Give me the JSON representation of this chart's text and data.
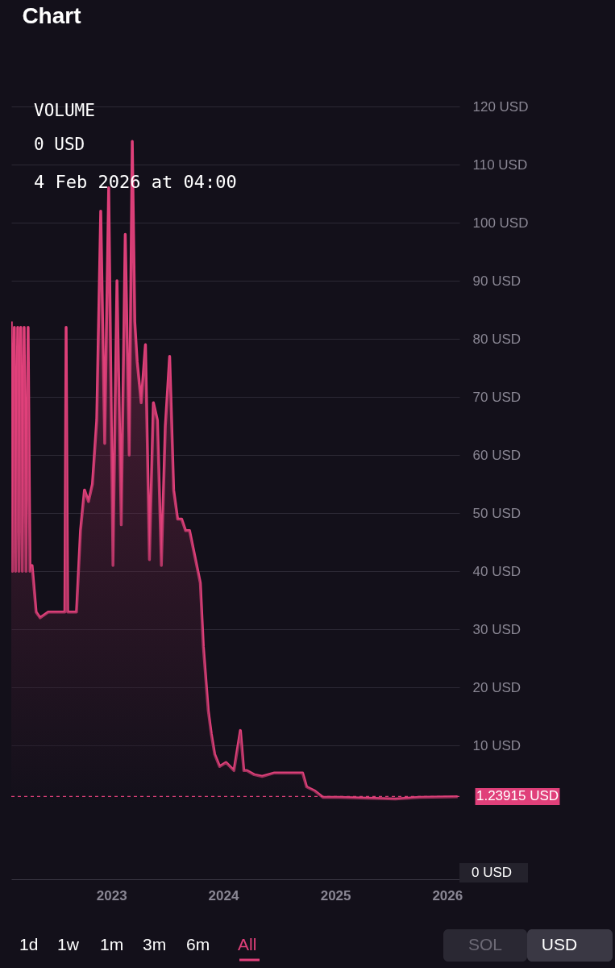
{
  "chart_data": {
    "type": "area",
    "title": "Chart",
    "x": [
      "2022-02-08",
      "2022-02-12",
      "2022-02-18",
      "2022-02-22",
      "2022-03-01",
      "2022-03-05",
      "2022-03-11",
      "2022-03-16",
      "2022-03-22",
      "2022-03-28",
      "2022-04-04",
      "2022-04-10",
      "2022-04-17",
      "2022-04-30",
      "2022-05-13",
      "2022-06-09",
      "2022-07-18",
      "2022-08-02",
      "2022-08-06",
      "2022-08-11",
      "2022-09-09",
      "2022-09-22",
      "2022-10-05",
      "2022-10-18",
      "2022-10-31",
      "2022-11-14",
      "2022-11-27",
      "2022-12-10",
      "2022-12-23",
      "2023-01-06",
      "2023-01-19",
      "2023-02-02",
      "2023-02-15",
      "2023-02-28",
      "2023-03-10",
      "2023-03-18",
      "2023-03-26",
      "2023-04-08",
      "2023-04-22",
      "2023-05-05",
      "2023-05-18",
      "2023-05-31",
      "2023-06-13",
      "2023-06-26",
      "2023-07-10",
      "2023-07-23",
      "2023-08-05",
      "2023-08-18",
      "2023-08-31",
      "2023-09-13",
      "2023-10-18",
      "2023-10-28",
      "2023-11-13",
      "2023-11-23",
      "2023-12-04",
      "2023-12-20",
      "2024-01-10",
      "2024-02-05",
      "2024-02-26",
      "2024-03-08",
      "2024-03-18",
      "2024-04-11",
      "2024-05-07",
      "2024-06-16",
      "2024-09-16",
      "2024-09-29",
      "2024-10-26",
      "2024-11-21",
      "2025-01-13",
      "2025-07-16",
      "2025-10-03",
      "2026-02-04"
    ],
    "series": [
      {
        "color": "#e0407a",
        "values": [
          83,
          40,
          82,
          40,
          82,
          40,
          82,
          40,
          82,
          40,
          82,
          40,
          41,
          33,
          32,
          33,
          33,
          33,
          82,
          33,
          33,
          47,
          54,
          52,
          55,
          66,
          102,
          62,
          106,
          41,
          90,
          48,
          98,
          60,
          114,
          83,
          76,
          69,
          79,
          42,
          69,
          66,
          41,
          65,
          77,
          54,
          49,
          49,
          47,
          47,
          38,
          27,
          16,
          12,
          8.5,
          6.4,
          7.1,
          5.7,
          12.6,
          5.7,
          5.7,
          5,
          4.7,
          5.3,
          5.3,
          2.9,
          2.2,
          1.1,
          1.1,
          0.8,
          1.1,
          1.2
        ]
      }
    ],
    "xlim": [
      "2022-02-08",
      "2026-02-10"
    ],
    "xticks": [
      {
        "value": "2023-01-01",
        "label": "2023"
      },
      {
        "value": "2024-01-01",
        "label": "2024"
      },
      {
        "value": "2025-01-01",
        "label": "2025"
      },
      {
        "value": "2026-01-01",
        "label": "2026"
      }
    ],
    "ylim": [
      -13,
      120
    ],
    "yticks": [
      {
        "value": 10,
        "label": "10 USD"
      },
      {
        "value": 20,
        "label": "20 USD"
      },
      {
        "value": 30,
        "label": "30 USD"
      },
      {
        "value": 40,
        "label": "40 USD"
      },
      {
        "value": 50,
        "label": "50 USD"
      },
      {
        "value": 60,
        "label": "60 USD"
      },
      {
        "value": 70,
        "label": "70 USD"
      },
      {
        "value": 80,
        "label": "80 USD"
      },
      {
        "value": 90,
        "label": "90 USD"
      },
      {
        "value": 100,
        "label": "100 USD"
      },
      {
        "value": 110,
        "label": "110 USD"
      },
      {
        "value": 120,
        "label": "120 USD"
      }
    ],
    "grid": "y",
    "ref_lines": [
      {
        "axis": "y",
        "value": 1.23915,
        "label": "1.23915 USD",
        "color": "#e0407a",
        "line_style": "dashed"
      }
    ],
    "annotations": [
      "VOLUME",
      "0 USD",
      "4 Feb 2026 at 04:00",
      "0 USD",
      "1d",
      "1w",
      "1m",
      "3m",
      "6m",
      "All",
      "SOL",
      "USD"
    ]
  }
}
